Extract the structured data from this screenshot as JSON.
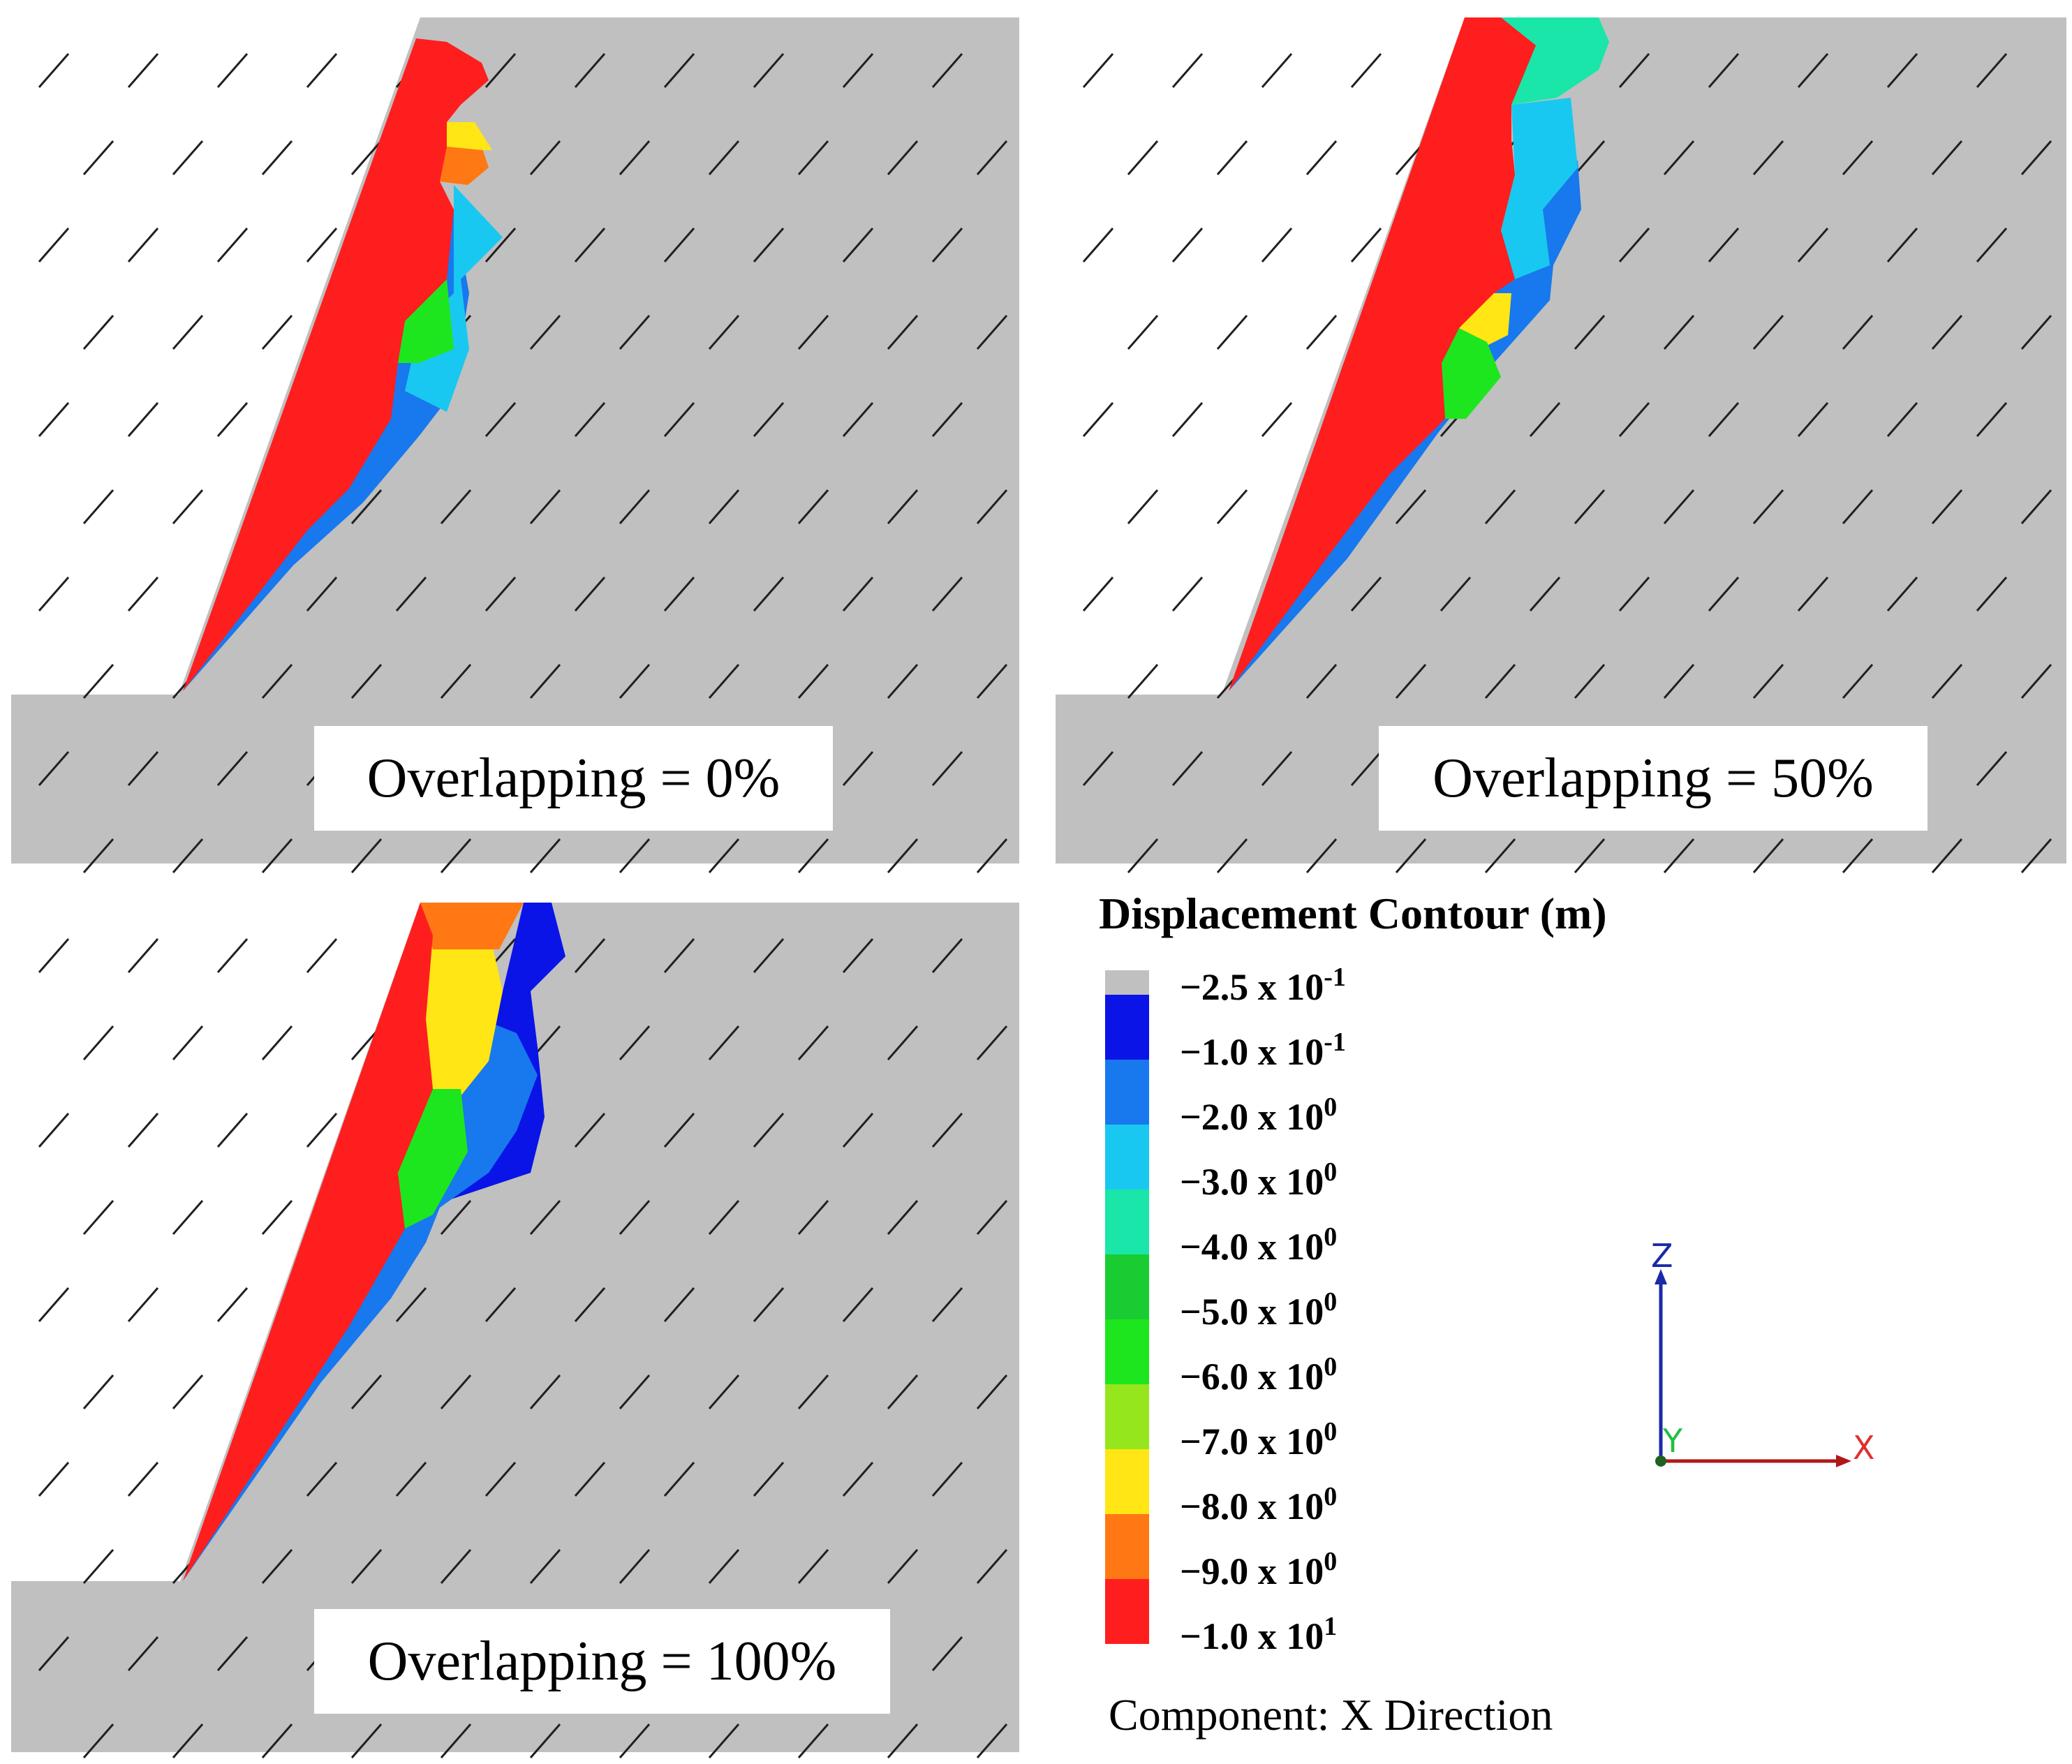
{
  "panels": [
    {
      "label": "Overlapping = 0%"
    },
    {
      "label": "Overlapping = 50%"
    },
    {
      "label": "Overlapping = 100%"
    }
  ],
  "legend": {
    "title": "Displacement Contour (m)",
    "entries": [
      {
        "mantissa": "−2.5 x 10",
        "exponent": "-1",
        "color": "#c0c0c0"
      },
      {
        "mantissa": "−1.0 x 10",
        "exponent": "-1",
        "color": "#0a14e6"
      },
      {
        "mantissa": "−2.0 x 10",
        "exponent": "0",
        "color": "#1878ee"
      },
      {
        "mantissa": "−3.0 x 10",
        "exponent": "0",
        "color": "#19c8f0"
      },
      {
        "mantissa": "−4.0 x 10",
        "exponent": "0",
        "color": "#19e6a8"
      },
      {
        "mantissa": "−5.0 x 10",
        "exponent": "0",
        "color": "#19cc32"
      },
      {
        "mantissa": "−6.0 x 10",
        "exponent": "0",
        "color": "#1ee61e"
      },
      {
        "mantissa": "−7.0 x 10",
        "exponent": "0",
        "color": "#96e61e"
      },
      {
        "mantissa": "−8.0 x 10",
        "exponent": "0",
        "color": "#ffe614"
      },
      {
        "mantissa": "−9.0 x 10",
        "exponent": "0",
        "color": "#ff7814"
      },
      {
        "mantissa": "−1.0 x 10",
        "exponent": "1",
        "color": "#ff1e1e"
      }
    ],
    "component": "Component: X Direction"
  },
  "axes": {
    "z_label": "Z",
    "x_label": "X",
    "y_label": "Y"
  },
  "colors": {
    "rock": "#c0c0c0",
    "background": "#ffffff",
    "joint": "#202020",
    "red": "#ff1e1e",
    "orange": "#ff7814",
    "yellow": "#ffe614",
    "lime": "#96e61e",
    "green": "#1ee61e",
    "dkgreen": "#19cc32",
    "teal": "#19e6a8",
    "cyan": "#19c8f0",
    "blue": "#1878ee",
    "dkblue": "#0a14e6",
    "axis_z": "#1a2aa8",
    "axis_x": "#b01818",
    "axis_y": "#20c040"
  }
}
